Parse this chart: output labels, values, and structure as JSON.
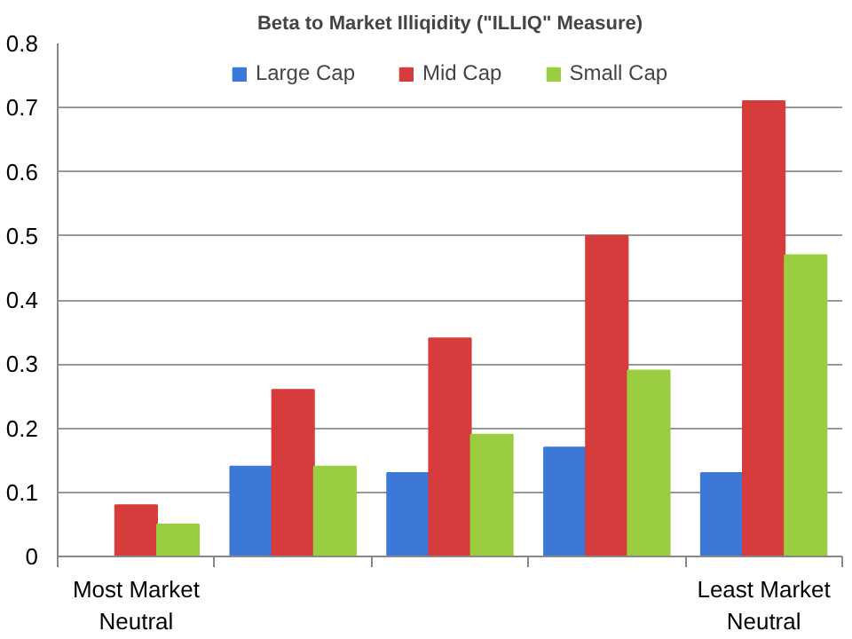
{
  "chart_data": {
    "type": "bar",
    "title": "Beta to Market Illiqidity (\"ILLIQ\" Measure)",
    "categories": [
      "Most Market\nNeutral",
      null,
      null,
      null,
      "Least Market\nNeutral"
    ],
    "series": [
      {
        "name": "Large Cap",
        "color": "#3c78d8",
        "values": [
          0,
          0.14,
          0.13,
          0.17,
          0.13
        ]
      },
      {
        "name": "Mid Cap",
        "color": "#d63c3c",
        "values": [
          0.08,
          0.26,
          0.34,
          0.5,
          0.71
        ]
      },
      {
        "name": "Small Cap",
        "color": "#9acd40",
        "values": [
          0.05,
          0.14,
          0.19,
          0.29,
          0.47
        ]
      }
    ],
    "ylim": [
      0,
      0.8
    ],
    "yticks": [
      0,
      0.1,
      0.2,
      0.3,
      0.4,
      0.5,
      0.6,
      0.7,
      0.8
    ],
    "grid": "y",
    "legend": "top"
  }
}
